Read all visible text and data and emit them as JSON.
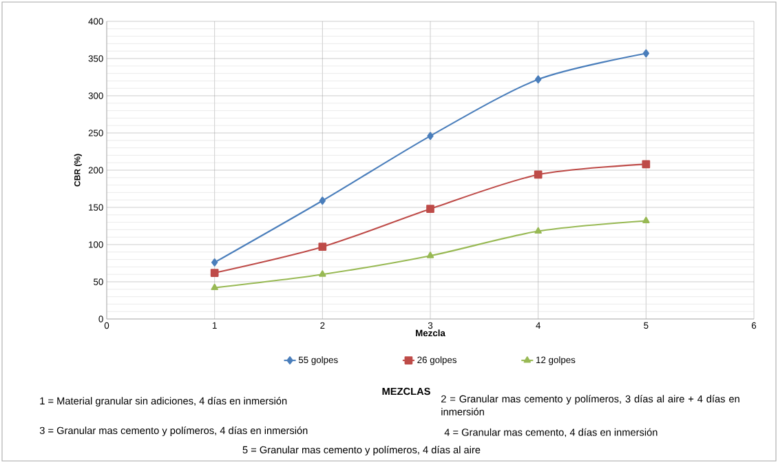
{
  "chart_data": {
    "type": "line",
    "xlabel": "Mezcla",
    "ylabel": "CBR (%)",
    "x": [
      1,
      2,
      3,
      4,
      5
    ],
    "series": [
      {
        "name": "55 golpes",
        "color": "#4a7ebb",
        "marker": "diamond",
        "values": [
          76,
          159,
          246,
          322,
          357
        ]
      },
      {
        "name": "26 golpes",
        "color": "#be4b48",
        "marker": "square",
        "values": [
          62,
          97,
          148,
          194,
          208
        ]
      },
      {
        "name": "12 golpes",
        "color": "#98b954",
        "marker": "triangle",
        "values": [
          42,
          60,
          85,
          118,
          132
        ]
      }
    ],
    "xlim": [
      0,
      6
    ],
    "xticks": [
      0,
      1,
      2,
      3,
      4,
      5,
      6
    ],
    "ylim": [
      0,
      400
    ],
    "yticks": [
      0,
      50,
      100,
      150,
      200,
      250,
      300,
      350,
      400
    ],
    "grid": true,
    "legend": "bottom",
    "line_style": "solid",
    "annotations": [
      "**MEZCLAS**",
      "1 = Material granular sin adiciones, 4 días en inmersión",
      "2 = Granular mas cemento y polímeros, 3 días al aire + 4 días en inmersión",
      "3 = Granular mas cemento y polímeros, 4 días en inmersión",
      "4 = Granular mas cemento, 4 días en inmersión",
      "5 = Granular mas cemento y polímeros, 4 días al aire"
    ]
  }
}
